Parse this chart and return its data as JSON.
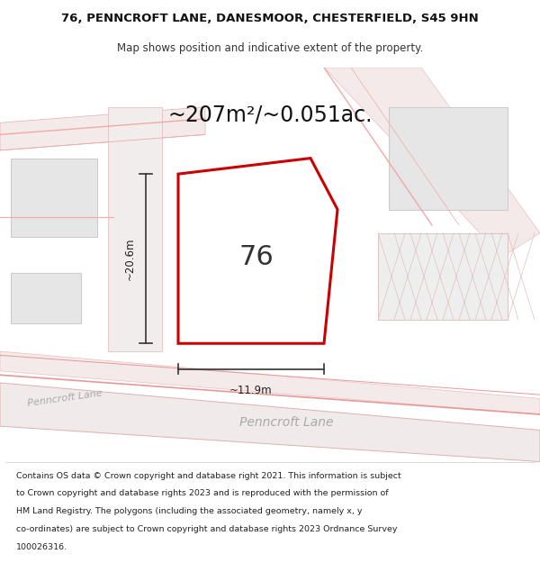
{
  "title_line1": "76, PENNCROFT LANE, DANESMOOR, CHESTERFIELD, S45 9HN",
  "title_line2": "Map shows position and indicative extent of the property.",
  "area_text": "~207m²/~0.051ac.",
  "number_label": "76",
  "dim_width": "~11.9m",
  "dim_height": "~20.6m",
  "road_label1": "Penncroft Lane",
  "road_label2": "Penncroft Lane",
  "footer_lines": [
    "Contains OS data © Crown copyright and database right 2021. This information is subject",
    "to Crown copyright and database rights 2023 and is reproduced with the permission of",
    "HM Land Registry. The polygons (including the associated geometry, namely x, y",
    "co-ordinates) are subject to Crown copyright and database rights 2023 Ordnance Survey",
    "100026316."
  ],
  "map_bg": "#ffffff",
  "plot_outline_color": "#cc0000"
}
